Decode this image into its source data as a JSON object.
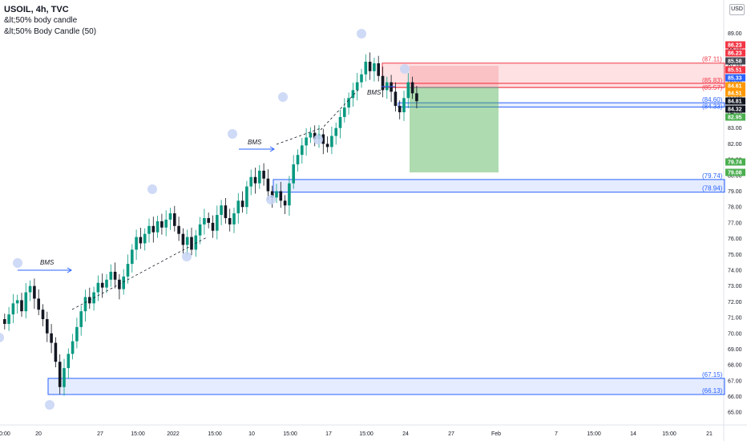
{
  "header": {
    "symbol_line": "USOIL, 4h, TVC",
    "indicator_1": "&lt;50% body candle",
    "indicator_2": "&lt;50% Body Candle (50)",
    "currency": "USD"
  },
  "colors": {
    "up": "#089981",
    "down": "#131722",
    "zone_blue": "#2962ff",
    "zone_red": "#f23645",
    "target_green": "#4caf50",
    "swing_dot": "#c5d3f5"
  },
  "chart_data": {
    "type": "candlestick",
    "ylim": [
      64.2,
      90.6
    ],
    "y_ticks": [
      "89.00",
      "88.00",
      "87.00",
      "86.00",
      "85.00",
      "84.00",
      "83.00",
      "82.00",
      "81.00",
      "80.00",
      "79.00",
      "78.00",
      "77.00",
      "76.00",
      "75.00",
      "74.00",
      "73.00",
      "72.00",
      "71.00",
      "70.00",
      "69.00",
      "68.00",
      "67.00",
      "66.00",
      "65.00"
    ],
    "x_ticks": [
      "00:00",
      "20",
      "27",
      "15:00",
      "2022",
      "15:00",
      "10",
      "15:00",
      "17",
      "15:00",
      "24",
      "27",
      "Feb",
      "7",
      "15:00",
      "14",
      "15:00",
      "21"
    ],
    "closes": [
      70.6,
      71.2,
      71.9,
      72.1,
      71.4,
      72.6,
      73.0,
      72.2,
      71.5,
      70.9,
      70.0,
      69.4,
      68.2,
      66.6,
      67.8,
      68.7,
      69.5,
      70.4,
      71.4,
      72.3,
      71.9,
      72.6,
      73.2,
      72.9,
      73.4,
      73.9,
      73.4,
      72.8,
      73.6,
      74.4,
      75.3,
      76.1,
      75.7,
      76.3,
      76.8,
      76.4,
      77.1,
      76.7,
      77.2,
      77.6,
      76.8,
      76.3,
      75.6,
      76.1,
      75.3,
      76.2,
      76.9,
      77.3,
      77.0,
      76.5,
      77.5,
      78.1,
      77.3,
      76.9,
      77.6,
      78.4,
      78.0,
      79.3,
      79.9,
      79.5,
      80.3,
      79.8,
      79.0,
      78.6,
      79.0,
      78.4,
      78.1,
      79.5,
      80.7,
      81.3,
      81.9,
      82.4,
      82.7,
      82.3,
      82.6,
      82.0,
      81.8,
      82.5,
      83.0,
      83.7,
      84.3,
      84.9,
      85.4,
      85.9,
      86.4,
      87.2,
      86.6,
      87.1,
      86.3,
      85.4,
      85.9,
      85.3,
      84.4,
      84.0,
      84.9,
      85.9,
      85.2,
      84.7
    ]
  },
  "annotations": {
    "bms": [
      "BMS",
      "BMS",
      "BMS"
    ],
    "levels": {
      "z1_top": "(67.15)",
      "z1_bot": "(66.13)",
      "z2_top": "(79.74)",
      "z2_bot": "(78.94)",
      "z3_top": "(84.60)",
      "z3_bot": "(84.33)",
      "r_top": "(87.11)",
      "r_a": "(85.83)",
      "r_b": "(85.57)"
    },
    "zone_values": {
      "z1_top": 67.15,
      "z1_bot": 66.13,
      "z2_top": 79.74,
      "z2_bot": 78.94,
      "z3_top": 84.6,
      "z3_bot": 84.33,
      "r_top": 87.11,
      "r_a": 85.83,
      "r_b": 85.57
    }
  },
  "price_tags": [
    {
      "text": "86.23",
      "color": "#f23645"
    },
    {
      "text": "86.23",
      "color": "#f23645"
    },
    {
      "text": "85.58",
      "color": "#434651"
    },
    {
      "text": "85.51",
      "color": "#f23645"
    },
    {
      "text": "85.33",
      "color": "#2962ff"
    },
    {
      "text": "84.61",
      "color": "#ff9800"
    },
    {
      "text": "84.51",
      "color": "#ff9800"
    },
    {
      "text": "84.81",
      "color": "#131722"
    },
    {
      "text": "84.32",
      "color": "#131722"
    },
    {
      "text": "82.95",
      "color": "#4caf50"
    },
    {
      "text": "79.74",
      "color": "#4caf50"
    },
    {
      "text": "79.08",
      "color": "#4caf50"
    }
  ]
}
